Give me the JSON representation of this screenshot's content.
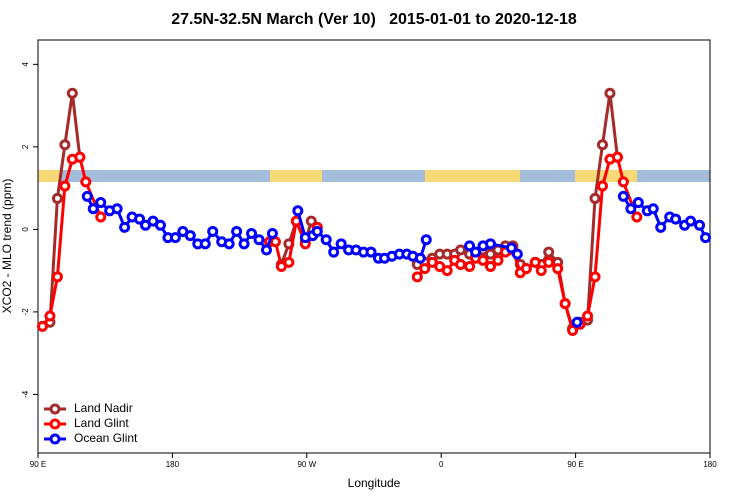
{
  "chart_data": {
    "type": "line",
    "title": "27.5N-32.5N March (Ver 10)   2015-01-01 to 2020-12-18",
    "x_label": "Longitude",
    "y_label": "XCO2 - MLO trend (ppm)",
    "xlim": [
      90,
      540
    ],
    "ylim": [
      -5.42,
      4.59
    ],
    "xticks": [
      {
        "value": 90,
        "label": "90 E"
      },
      180,
      {
        "value": 270,
        "label": "90 W"
      },
      {
        "value": 360,
        "label": "0"
      },
      {
        "value": 450,
        "label": "90 E"
      },
      {
        "value": 540,
        "label": "180"
      }
    ],
    "yticks": [
      -4,
      -2,
      0,
      2,
      4
    ],
    "grid": false,
    "legend": "bottom-left",
    "series": [
      {
        "name": "Land Nadir",
        "color": "#a52a2a",
        "x": [
          98,
          103,
          108,
          113,
          118,
          null,
          253,
          258,
          263,
          269,
          273,
          277,
          null,
          344,
          349,
          354,
          359,
          364,
          369,
          373,
          379,
          383,
          388,
          393,
          398,
          403,
          408,
          413,
          417,
          423,
          427,
          432,
          438,
          443,
          448,
          453,
          458,
          463,
          468,
          473,
          478
        ],
        "values": [
          -2.25,
          0.75,
          2.05,
          3.3,
          1.75,
          null,
          -0.85,
          -0.35,
          0.2,
          -0.3,
          0.2,
          0.05,
          null,
          -0.85,
          -0.8,
          -0.7,
          -0.6,
          -0.6,
          -0.6,
          -0.5,
          -0.6,
          -0.65,
          -0.5,
          -0.6,
          -0.5,
          -0.4,
          -0.4,
          -0.85,
          -0.95,
          -0.8,
          -0.85,
          -0.55,
          -0.8,
          -1.8,
          -2.4,
          -2.25,
          -2.2,
          0.75,
          2.05,
          3.3,
          1.75
        ]
      },
      {
        "name": "Land Glint",
        "color": "#ff0000",
        "x": [
          93,
          98,
          103,
          108,
          113,
          118,
          122,
          132,
          null,
          245,
          249,
          253,
          258,
          263,
          269,
          277,
          null,
          344,
          349,
          354,
          359,
          364,
          369,
          373,
          379,
          383,
          388,
          393,
          398,
          403,
          408,
          413,
          417,
          423,
          427,
          432,
          438,
          443,
          448,
          453,
          458,
          463,
          468,
          473,
          478,
          482,
          491
        ],
        "values": [
          -2.35,
          -2.1,
          -1.15,
          1.05,
          1.7,
          1.75,
          1.15,
          0.3,
          null,
          -0.3,
          -0.3,
          -0.9,
          -0.8,
          0.2,
          -0.35,
          0.05,
          null,
          -1.15,
          -0.95,
          -0.8,
          -0.9,
          -1.0,
          -0.75,
          -0.85,
          -0.9,
          -0.7,
          -0.75,
          -0.9,
          -0.75,
          -0.55,
          -0.5,
          -1.05,
          -0.95,
          -0.8,
          -1.0,
          -0.8,
          -0.95,
          -1.8,
          -2.45,
          -2.3,
          -2.1,
          -1.15,
          1.05,
          1.7,
          1.75,
          1.15,
          0.3
        ]
      },
      {
        "name": "Ocean Glint",
        "color": "#0000ff",
        "x": [
          123,
          127,
          132,
          138,
          143,
          148,
          153,
          158,
          162,
          167,
          172,
          177,
          182,
          187,
          192,
          197,
          202,
          207,
          213,
          218,
          223,
          228,
          233,
          238,
          243,
          247,
          null,
          264,
          269,
          274,
          277,
          283,
          288,
          293,
          298,
          303,
          308,
          313,
          318,
          322,
          327,
          332,
          337,
          341,
          346,
          350,
          null,
          379,
          383,
          388,
          393,
          407,
          411,
          null,
          451,
          null,
          482,
          487,
          492,
          498,
          502,
          507,
          513,
          517,
          523,
          527,
          533,
          537
        ],
        "values": [
          0.8,
          0.5,
          0.65,
          0.45,
          0.5,
          0.05,
          0.3,
          0.25,
          0.1,
          0.2,
          0.1,
          -0.2,
          -0.2,
          -0.05,
          -0.15,
          -0.35,
          -0.35,
          -0.05,
          -0.3,
          -0.35,
          -0.05,
          -0.35,
          -0.1,
          -0.25,
          -0.5,
          -0.1,
          null,
          0.45,
          -0.2,
          -0.15,
          -0.05,
          -0.25,
          -0.55,
          -0.35,
          -0.5,
          -0.5,
          -0.55,
          -0.55,
          -0.7,
          -0.7,
          -0.65,
          -0.6,
          -0.6,
          -0.65,
          -0.7,
          -0.25,
          null,
          -0.4,
          -0.55,
          -0.4,
          -0.35,
          -0.45,
          -0.6,
          null,
          -2.25,
          null,
          0.8,
          0.5,
          0.65,
          0.45,
          0.5,
          0.05,
          0.3,
          0.25,
          0.1,
          0.2,
          0.1,
          -0.2
        ]
      }
    ]
  }
}
